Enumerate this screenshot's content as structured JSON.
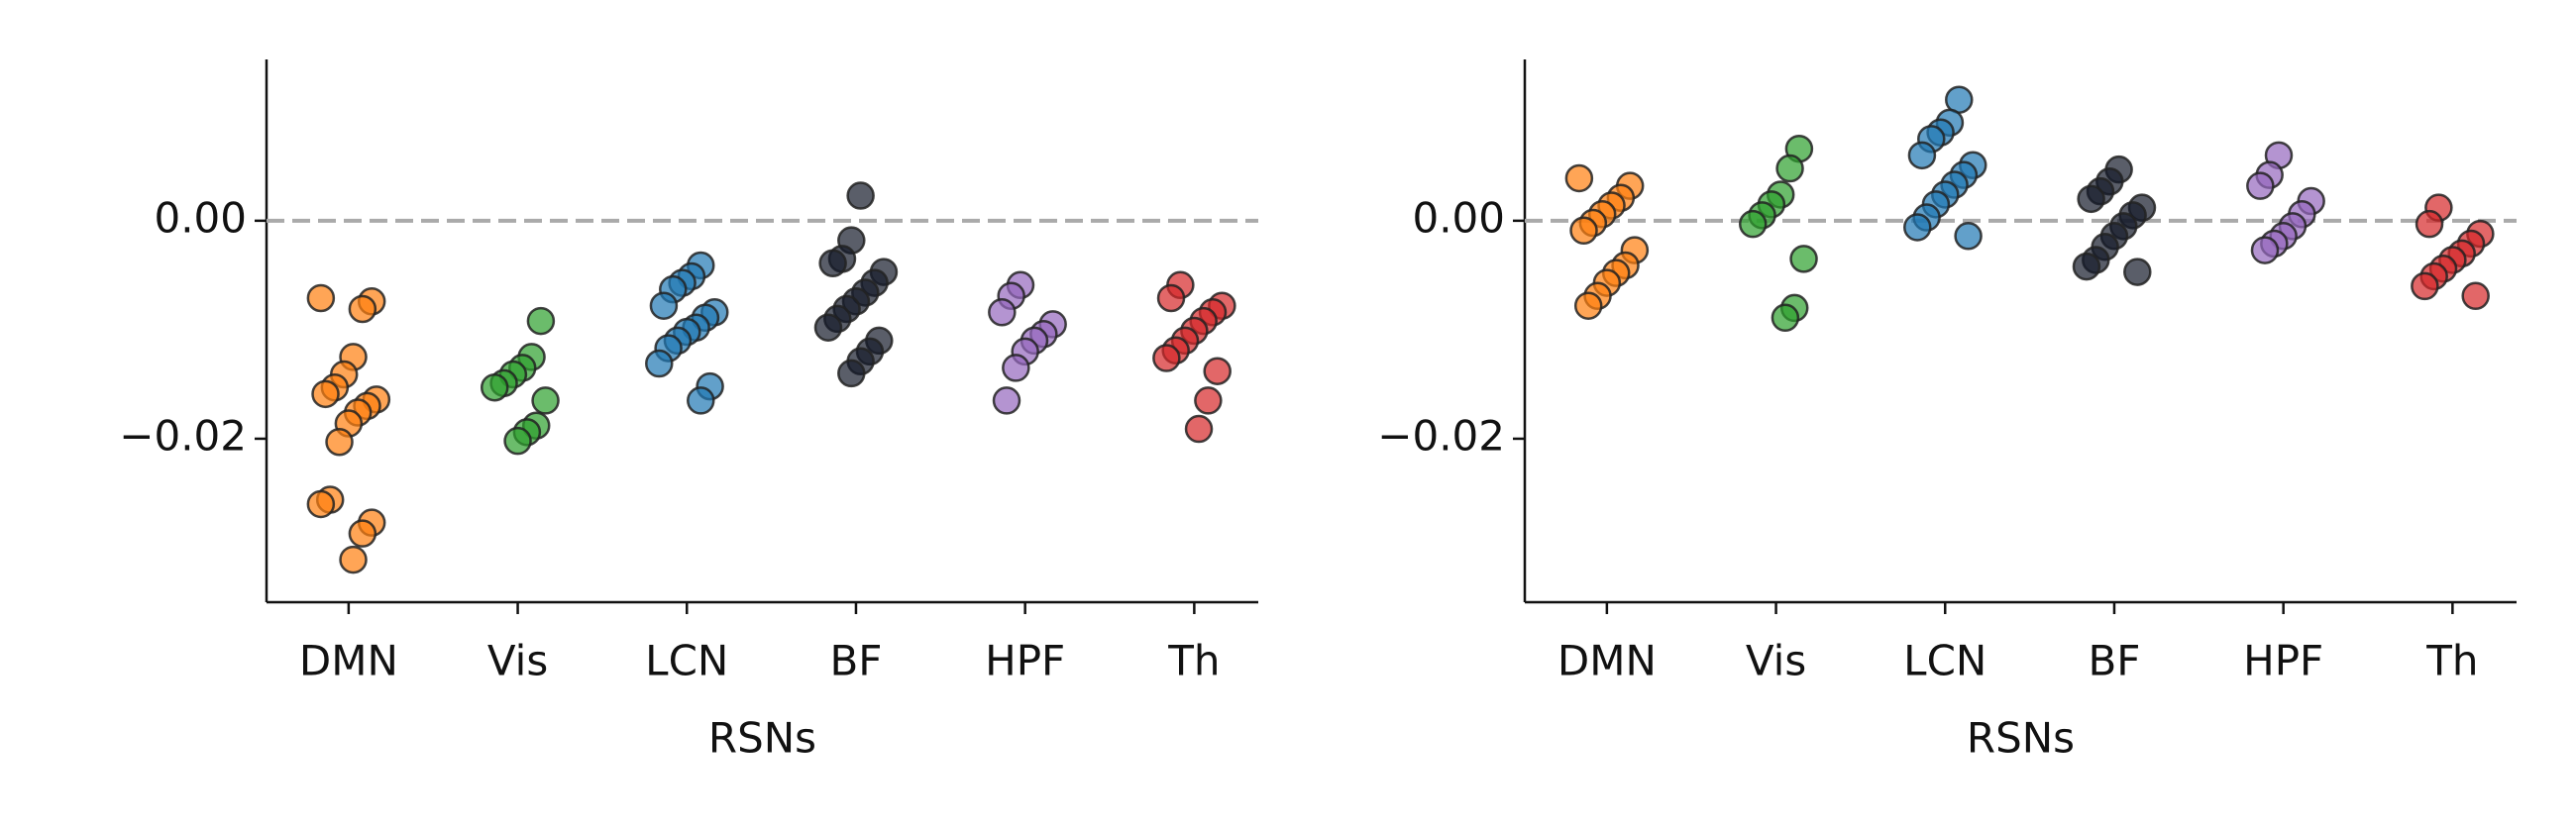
{
  "chart_data": [
    {
      "type": "strip",
      "x_label": "RSNs",
      "categories": [
        "DMN",
        "Vis",
        "LCN",
        "BF",
        "HPF",
        "Th"
      ],
      "colors": [
        "#ff7f0e",
        "#2ca02c",
        "#1f77b4",
        "#141a2a",
        "#9467bd",
        "#d62728"
      ],
      "values": [
        [
          -0.0071,
          -0.0074,
          -0.0081,
          -0.0125,
          -0.0141,
          -0.0153,
          -0.0159,
          -0.0164,
          -0.017,
          -0.0176,
          -0.0186,
          -0.0203,
          -0.0256,
          -0.026,
          -0.0277,
          -0.0287,
          -0.0311
        ],
        [
          -0.0092,
          -0.0125,
          -0.0135,
          -0.0141,
          -0.0149,
          -0.0153,
          -0.0165,
          -0.0188,
          -0.0194,
          -0.0202
        ],
        [
          -0.0041,
          -0.0051,
          -0.0057,
          -0.0063,
          -0.0078,
          -0.0084,
          -0.0089,
          -0.0098,
          -0.0102,
          -0.011,
          -0.0117,
          -0.0131,
          -0.0152,
          -0.0165
        ],
        [
          0.0023,
          -0.0018,
          -0.0035,
          -0.0039,
          -0.0047,
          -0.0057,
          -0.0066,
          -0.0074,
          -0.0081,
          -0.009,
          -0.0098,
          -0.011,
          -0.012,
          -0.0129,
          -0.014
        ],
        [
          -0.0059,
          -0.0069,
          -0.0084,
          -0.0095,
          -0.0104,
          -0.011,
          -0.012,
          -0.0135,
          -0.0165
        ],
        [
          -0.0059,
          -0.0071,
          -0.0078,
          -0.0084,
          -0.0092,
          -0.0101,
          -0.011,
          -0.0119,
          -0.0126,
          -0.0138,
          -0.0165,
          -0.0191
        ]
      ],
      "hline": 0,
      "hline_color": "#aaaaaa",
      "ylim": [
        -0.035,
        0.0148
      ],
      "yticks": [
        {
          "value": -0.02,
          "label": "−0.02"
        },
        {
          "value": 0,
          "label": "0.00"
        }
      ]
    },
    {
      "type": "strip",
      "x_label": "RSNs",
      "categories": [
        "DMN",
        "Vis",
        "LCN",
        "BF",
        "HPF",
        "Th"
      ],
      "colors": [
        "#ff7f0e",
        "#2ca02c",
        "#1f77b4",
        "#141a2a",
        "#9467bd",
        "#d62728"
      ],
      "values": [
        [
          0.0039,
          0.0032,
          0.0021,
          0.0014,
          0.0006,
          -0.0002,
          -0.0009,
          -0.0027,
          -0.0041,
          -0.0048,
          -0.0057,
          -0.0069,
          -0.0078
        ],
        [
          0.0066,
          0.0048,
          0.0024,
          0.0015,
          0.0005,
          -0.0003,
          -0.0035,
          -0.008,
          -0.0089
        ],
        [
          0.0111,
          0.009,
          0.0081,
          0.0075,
          0.006,
          0.0051,
          0.0042,
          0.0033,
          0.0024,
          0.0015,
          0.0003,
          -0.0006,
          -0.0014
        ],
        [
          0.0047,
          0.0036,
          0.0027,
          0.002,
          0.0012,
          0.0005,
          -0.0005,
          -0.0014,
          -0.0024,
          -0.0036,
          -0.0042,
          -0.0047
        ],
        [
          0.006,
          0.0042,
          0.0032,
          0.0018,
          0.0006,
          -0.0005,
          -0.0014,
          -0.0021,
          -0.0027
        ],
        [
          0.0012,
          -0.0003,
          -0.0012,
          -0.0021,
          -0.003,
          -0.0036,
          -0.0044,
          -0.0051,
          -0.006,
          -0.0069
        ]
      ],
      "hline": 0,
      "hline_color": "#aaaaaa",
      "ylim": [
        -0.035,
        0.0148
      ],
      "yticks": [
        {
          "value": -0.02,
          "label": "−0.02"
        },
        {
          "value": 0,
          "label": "0.00"
        }
      ]
    }
  ]
}
